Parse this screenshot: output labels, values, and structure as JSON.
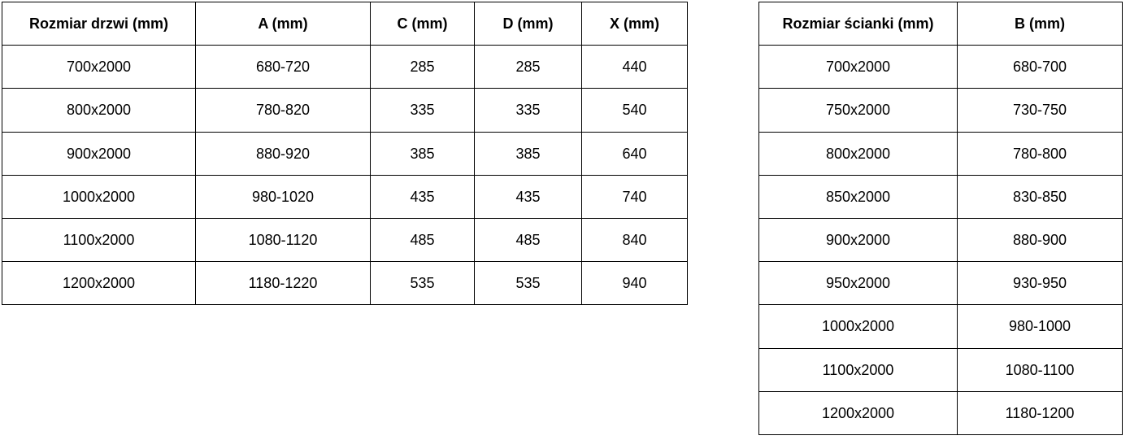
{
  "colors": {
    "border": "#000000",
    "text": "#000000",
    "background": "#ffffff"
  },
  "tables": {
    "doors": {
      "name": "door-sizes",
      "headers": [
        "Rozmiar drzwi (mm)",
        "A (mm)",
        "C (mm)",
        "D (mm)",
        "X (mm)"
      ],
      "rows": [
        [
          "700x2000",
          "680-720",
          "285",
          "285",
          "440"
        ],
        [
          "800x2000",
          "780-820",
          "335",
          "335",
          "540"
        ],
        [
          "900x2000",
          "880-920",
          "385",
          "385",
          "640"
        ],
        [
          "1000x2000",
          "980-1020",
          "435",
          "435",
          "740"
        ],
        [
          "1100x2000",
          "1080-1120",
          "485",
          "485",
          "840"
        ],
        [
          "1200x2000",
          "1180-1220",
          "535",
          "535",
          "940"
        ]
      ]
    },
    "walls": {
      "name": "wall-panel-sizes",
      "headers": [
        "Rozmiar ścianki (mm)",
        "B (mm)"
      ],
      "rows": [
        [
          "700x2000",
          "680-700"
        ],
        [
          "750x2000",
          "730-750"
        ],
        [
          "800x2000",
          "780-800"
        ],
        [
          "850x2000",
          "830-850"
        ],
        [
          "900x2000",
          "880-900"
        ],
        [
          "950x2000",
          "930-950"
        ],
        [
          "1000x2000",
          "980-1000"
        ],
        [
          "1100x2000",
          "1080-1100"
        ],
        [
          "1200x2000",
          "1180-1200"
        ]
      ]
    }
  }
}
